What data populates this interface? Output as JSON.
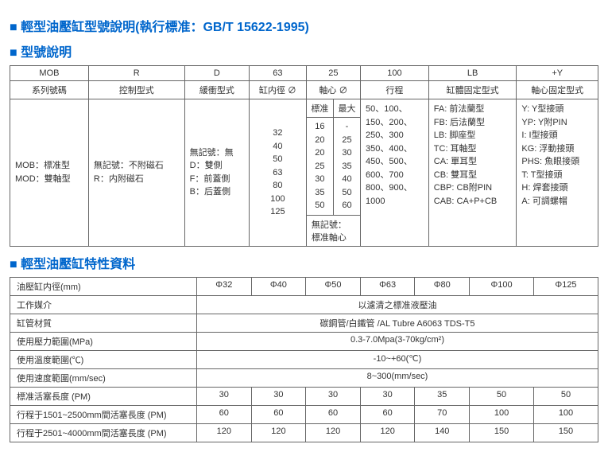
{
  "titles": {
    "main": "輕型油壓缸型號說明(執行標准：GB/T 15622-1995)",
    "model": "型號說明",
    "spec": "輕型油壓缸特性資料"
  },
  "model": {
    "headers": [
      "MOB",
      "R",
      "D",
      "63",
      "25",
      "100",
      "LB",
      "+Y"
    ],
    "subheaders": [
      "系列號碼",
      "控制型式",
      "緩衝型式",
      "缸内徑 ∅",
      "軸心 ∅",
      "行程",
      "缸體固定型式",
      "軸心固定型式"
    ],
    "col1": "MOB：標准型\nMOD：雙軸型",
    "col2": "無記號：不附磁石\nR：内附磁石",
    "col3": "無記號：無\nD：雙側\nF：前蓋側\nB：后蓋側",
    "col4": "32\n40\n50\n63\n80\n100\n125",
    "col5": {
      "head_l": "標准",
      "head_r": "最大",
      "l": "16\n20\n20\n25\n30\n35\n50",
      "r": "-\n25\n30\n35\n40\n50\n60",
      "note": "無記號：\n標准軸心"
    },
    "col6": "50、100、\n150、200、\n250、300\n350、400、\n450、500、\n600、700\n800、900、\n1000",
    "col7": "FA: 前法蘭型\nFB: 后法蘭型\nLB: 脚座型\nTC: 耳軸型\nCA: 單耳型\nCB: 雙耳型\nCBP: CB附PIN\nCAB: CA+P+CB",
    "col8": "Y: Y型接頭\nYP: Y附PIN\nI: I型接頭\nKG: 浮動接頭\nPHS: 魚眼接頭\nT: T型接頭\nH: 焊套接頭\nA: 可調螺帽"
  },
  "spec": {
    "cols": [
      "Φ32",
      "Φ40",
      "Φ50",
      "Φ63",
      "Φ80",
      "Φ100",
      "Φ125"
    ],
    "rows": [
      {
        "label": "油壓缸内徑(mm)",
        "type": "cols"
      },
      {
        "label": "工作媒介",
        "type": "span",
        "value": "以濾清之標准液壓油"
      },
      {
        "label": "缸管材質",
        "type": "span",
        "value": "碳鋼管/白鐵管 /AL Tubre A6063 TDS-T5"
      },
      {
        "label": "使用壓力範圍(MPa)",
        "type": "span",
        "value": "0.3-7.0Mpa(3-70kg/cm²)"
      },
      {
        "label": "使用溫度範圍(℃)",
        "type": "span",
        "value": "-10~+60(℃)"
      },
      {
        "label": "使用速度範圍(mm/sec)",
        "type": "span",
        "value": "8~300(mm/sec)"
      },
      {
        "label": "標准活塞長度 (PM)",
        "type": "vals",
        "values": [
          "30",
          "30",
          "30",
          "30",
          "35",
          "50",
          "50"
        ]
      },
      {
        "label": "行程于1501~2500mm間活塞長度 (PM)",
        "type": "vals",
        "values": [
          "60",
          "60",
          "60",
          "60",
          "70",
          "100",
          "100"
        ]
      },
      {
        "label": "行程于2501~4000mm間活塞長度 (PM)",
        "type": "vals",
        "values": [
          "120",
          "120",
          "120",
          "120",
          "140",
          "150",
          "150"
        ]
      }
    ]
  }
}
